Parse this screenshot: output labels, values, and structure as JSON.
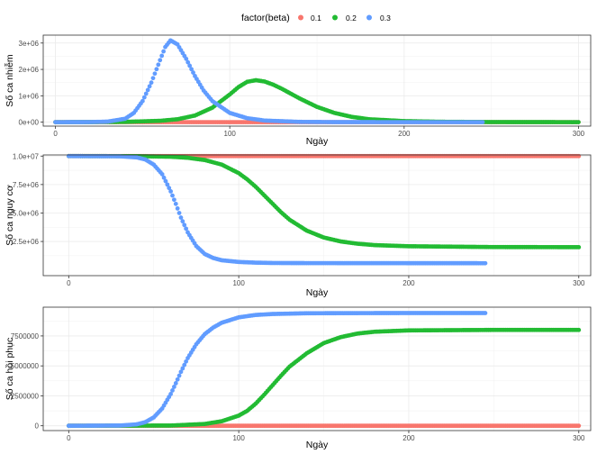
{
  "legend": {
    "title": "factor(beta)",
    "entries": [
      {
        "label": "0.1",
        "color": "#F8766D"
      },
      {
        "label": "0.2",
        "color": "#22BB33"
      },
      {
        "label": "0.3",
        "color": "#619CFF"
      }
    ]
  },
  "chart_data": [
    {
      "type": "scatter",
      "xlabel": "Ngày",
      "ylabel": "Số ca nhiễm",
      "xlim": [
        -7,
        307
      ],
      "ylim": [
        -150000,
        3300000
      ],
      "xticks": [
        0,
        100,
        200,
        300
      ],
      "xtick_labels": [
        "0",
        "100",
        "200",
        "300"
      ],
      "yticks": [
        0,
        1000000,
        2000000,
        3000000
      ],
      "ytick_labels": [
        "0e+00",
        "1e+06",
        "2e+06",
        "3e+06"
      ],
      "grid": true,
      "series": [
        {
          "name": "0.1",
          "color": "#F8766D",
          "x": [
            0,
            300
          ],
          "y": [
            0,
            0
          ]
        },
        {
          "name": "0.2",
          "color": "#22BB33",
          "x": [
            0,
            20,
            40,
            60,
            70,
            80,
            90,
            100,
            105,
            110,
            115,
            120,
            125,
            130,
            140,
            150,
            160,
            170,
            180,
            200,
            220,
            250,
            300
          ],
          "y": [
            0,
            2000,
            10000,
            50000,
            110000,
            250000,
            550000,
            1050000,
            1330000,
            1530000,
            1590000,
            1540000,
            1420000,
            1260000,
            900000,
            580000,
            350000,
            200000,
            110000,
            40000,
            15000,
            3000,
            0
          ]
        },
        {
          "name": "0.3",
          "color": "#619CFF",
          "x": [
            0,
            20,
            30,
            40,
            45,
            50,
            55,
            60,
            63,
            66,
            70,
            75,
            80,
            85,
            90,
            100,
            110,
            120,
            140,
            160,
            200,
            245
          ],
          "y": [
            0,
            3000,
            20000,
            130000,
            350000,
            800000,
            1500000,
            2350000,
            2850000,
            3100000,
            2950000,
            2400000,
            1750000,
            1200000,
            800000,
            350000,
            150000,
            60000,
            10000,
            2000,
            0,
            0
          ]
        }
      ]
    },
    {
      "type": "scatter",
      "xlabel": "Ngày",
      "ylabel": "Số ca nguy cơ",
      "xlim": [
        -15,
        307
      ],
      "ylim": [
        -500000,
        10100000
      ],
      "xticks": [
        0,
        100,
        200,
        300
      ],
      "xtick_labels": [
        "0",
        "100",
        "200",
        "300"
      ],
      "yticks": [
        2500000,
        5000000,
        7500000,
        10000000
      ],
      "ytick_labels": [
        "2.5e+06",
        "5.0e+06",
        "7.5e+06",
        "1.0e+07"
      ],
      "grid": true,
      "series": [
        {
          "name": "0.1",
          "color": "#F8766D",
          "x": [
            0,
            300
          ],
          "y": [
            10000000,
            10000000
          ]
        },
        {
          "name": "0.2",
          "color": "#22BB33",
          "x": [
            0,
            40,
            60,
            70,
            80,
            90,
            100,
            105,
            110,
            115,
            120,
            125,
            130,
            140,
            150,
            160,
            170,
            180,
            200,
            250,
            300
          ],
          "y": [
            10000000,
            9990000,
            9940000,
            9850000,
            9650000,
            9250000,
            8500000,
            7950000,
            7300000,
            6550000,
            5800000,
            5050000,
            4400000,
            3450000,
            2850000,
            2500000,
            2300000,
            2180000,
            2080000,
            2010000,
            2000000
          ]
        },
        {
          "name": "0.3",
          "color": "#619CFF",
          "x": [
            0,
            30,
            40,
            45,
            50,
            55,
            60,
            63,
            66,
            70,
            75,
            80,
            85,
            90,
            100,
            110,
            120,
            140,
            245
          ],
          "y": [
            10000000,
            9980000,
            9880000,
            9700000,
            9250000,
            8400000,
            6900000,
            5800000,
            4600000,
            3300000,
            2100000,
            1400000,
            1050000,
            850000,
            700000,
            640000,
            610000,
            600000,
            590000
          ]
        }
      ]
    },
    {
      "type": "scatter",
      "xlabel": "Ngày",
      "ylabel": "Số ca hồi phục",
      "xlim": [
        -15,
        307
      ],
      "ylim": [
        -400000,
        9900000
      ],
      "xticks": [
        0,
        100,
        200,
        300
      ],
      "xtick_labels": [
        "0",
        "100",
        "200",
        "300"
      ],
      "yticks": [
        0,
        2500000,
        5000000,
        7500000
      ],
      "ytick_labels": [
        "0",
        "2500000",
        "5000000",
        "7500000"
      ],
      "grid": true,
      "series": [
        {
          "name": "0.1",
          "color": "#F8766D",
          "x": [
            0,
            300
          ],
          "y": [
            0,
            0
          ]
        },
        {
          "name": "0.2",
          "color": "#22BB33",
          "x": [
            0,
            60,
            80,
            90,
            100,
            105,
            110,
            115,
            120,
            125,
            130,
            140,
            150,
            160,
            170,
            180,
            200,
            250,
            300
          ],
          "y": [
            0,
            20000,
            150000,
            380000,
            850000,
            1250000,
            1850000,
            2600000,
            3400000,
            4200000,
            4950000,
            6050000,
            6900000,
            7400000,
            7700000,
            7850000,
            7960000,
            8000000,
            8000000
          ]
        },
        {
          "name": "0.3",
          "color": "#619CFF",
          "x": [
            0,
            30,
            40,
            45,
            50,
            55,
            60,
            63,
            66,
            70,
            75,
            80,
            85,
            90,
            100,
            110,
            120,
            140,
            160,
            200,
            245
          ],
          "y": [
            0,
            20000,
            120000,
            300000,
            700000,
            1450000,
            2650000,
            3550000,
            4500000,
            5650000,
            6800000,
            7650000,
            8200000,
            8600000,
            9050000,
            9250000,
            9330000,
            9390000,
            9400000,
            9410000,
            9410000
          ]
        }
      ]
    }
  ]
}
